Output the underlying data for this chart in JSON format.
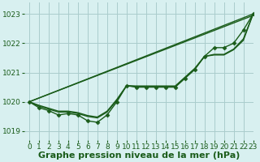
{
  "xlabel": "Graphe pression niveau de la mer (hPa)",
  "bg_color": "#d8f0f0",
  "grid_color": "#aacccc",
  "line_color": "#1a5c1a",
  "xlim": [
    -0.5,
    23
  ],
  "ylim": [
    1018.7,
    1023.4
  ],
  "xticks": [
    0,
    1,
    2,
    3,
    4,
    5,
    6,
    7,
    8,
    9,
    10,
    11,
    12,
    13,
    14,
    15,
    16,
    17,
    18,
    19,
    20,
    21,
    22,
    23
  ],
  "yticks": [
    1019,
    1020,
    1021,
    1022,
    1023
  ],
  "line_width": 1.0,
  "marker_size": 2.5,
  "xlabel_fontsize": 8,
  "tick_fontsize": 6.5,
  "straight_lines": [
    [
      [
        0,
        23
      ],
      [
        1020.0,
        1023.0
      ]
    ],
    [
      [
        0,
        23
      ],
      [
        1020.0,
        1022.95
      ]
    ]
  ],
  "wavy_line": [
    1020.0,
    1019.8,
    1019.7,
    1019.55,
    1019.6,
    1019.55,
    1019.35,
    1019.3,
    1019.55,
    1020.0,
    1020.55,
    1020.5,
    1020.5,
    1020.5,
    1020.5,
    1020.5,
    1020.8,
    1021.1,
    1021.55,
    1021.85,
    1021.85,
    1022.0,
    1022.45,
    1023.0
  ],
  "extra_lines": [
    [
      1020.0,
      1019.85,
      1019.75,
      1019.65,
      1019.65,
      1019.6,
      1019.5,
      1019.45,
      1019.65,
      1020.05,
      1020.55,
      1020.52,
      1020.52,
      1020.52,
      1020.52,
      1020.52,
      1020.82,
      1021.12,
      1021.55,
      1021.6,
      1021.6,
      1021.78,
      1022.1,
      1023.0
    ],
    [
      1020.0,
      1019.88,
      1019.78,
      1019.68,
      1019.68,
      1019.63,
      1019.53,
      1019.48,
      1019.68,
      1020.08,
      1020.55,
      1020.54,
      1020.54,
      1020.54,
      1020.54,
      1020.54,
      1020.84,
      1021.14,
      1021.55,
      1021.62,
      1021.62,
      1021.8,
      1022.15,
      1023.0
    ]
  ]
}
